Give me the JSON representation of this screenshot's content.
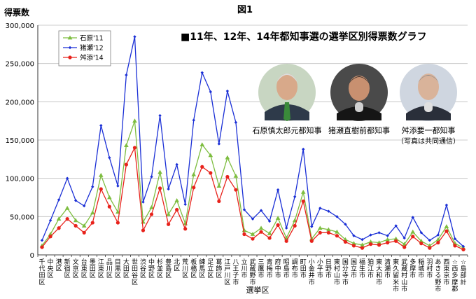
{
  "figure_label": "図1",
  "chart_data": {
    "type": "line",
    "title": "■11年、12年、14年都知事選の選挙区別得票数グラフ",
    "ylabel": "得票数",
    "xlabel": "選挙区",
    "ylim": [
      0,
      300000
    ],
    "yticks": [
      0,
      50000,
      100000,
      150000,
      200000,
      250000,
      300000
    ],
    "ytick_labels": [
      "0",
      "50,000",
      "100,000",
      "150,000",
      "200,000",
      "250,000",
      "300,000"
    ],
    "grid": true,
    "legend_position": "top-left",
    "categories": [
      "千代田区",
      "中央区",
      "港区",
      "新宿区",
      "文京区",
      "台東区",
      "墨田区",
      "江東区",
      "品川区",
      "目黒区",
      "大田区",
      "世田谷区",
      "渋谷区",
      "中野区",
      "杉並区",
      "豊島区",
      "北区",
      "荒川区",
      "板橋区",
      "練馬区",
      "足立区",
      "葛飾区",
      "江戸川区",
      "八王子市",
      "立川市",
      "武蔵野市",
      "三鷹市",
      "青梅市",
      "府中市",
      "昭島市",
      "調布市",
      "町田市",
      "小金井市",
      "小平市",
      "日野市",
      "東村山市",
      "国分寺市",
      "国立市",
      "福生市",
      "狛江市",
      "東大和市",
      "清瀬市",
      "東久留米市",
      "武蔵村山市",
      "多摩市",
      "稲城市",
      "羽村市",
      "あきる野市",
      "西東京市",
      "☆西多摩郡",
      "☆島部計"
    ],
    "series": [
      {
        "name": "石原'11",
        "color": "#7dbd3f",
        "marker": "triangle",
        "values": [
          12000,
          27000,
          47000,
          61000,
          45000,
          38000,
          55000,
          104000,
          75000,
          56000,
          143000,
          175000,
          43000,
          62000,
          108000,
          53000,
          71000,
          41000,
          105000,
          144000,
          130000,
          90000,
          127000,
          103000,
          32000,
          27000,
          35000,
          28000,
          48000,
          22000,
          45000,
          82000,
          21000,
          35000,
          33000,
          30000,
          20000,
          15000,
          13000,
          17000,
          16000,
          20000,
          21000,
          14000,
          30000,
          18000,
          12000,
          20000,
          37000,
          15000,
          9000
        ]
      },
      {
        "name": "猪瀬'12",
        "color": "#1a2fd6",
        "marker": "diamond",
        "values": [
          19000,
          45000,
          72000,
          100000,
          71000,
          64000,
          89000,
          169000,
          127000,
          90000,
          235000,
          285000,
          69000,
          102000,
          182000,
          86000,
          118000,
          66000,
          176000,
          238000,
          213000,
          145000,
          214000,
          173000,
          59000,
          47000,
          58000,
          44000,
          85000,
          35000,
          76000,
          138000,
          37000,
          61000,
          57000,
          50000,
          40000,
          25000,
          20000,
          26000,
          29000,
          25000,
          38000,
          22000,
          49000,
          29000,
          19000,
          26000,
          65000,
          21000,
          11000
        ]
      },
      {
        "name": "舛添'14",
        "color": "#e8221b",
        "marker": "circle",
        "values": [
          10000,
          24000,
          35000,
          47000,
          38000,
          29000,
          42000,
          86000,
          63000,
          42000,
          118000,
          140000,
          32000,
          53000,
          87000,
          40000,
          59000,
          34000,
          88000,
          115000,
          107000,
          70000,
          102000,
          85000,
          27000,
          21000,
          30000,
          22000,
          39000,
          18000,
          38000,
          70000,
          18000,
          29000,
          29000,
          25000,
          17000,
          12000,
          9000,
          14000,
          13000,
          16000,
          18000,
          10000,
          24000,
          15000,
          9000,
          16000,
          31000,
          12000,
          7000
        ]
      }
    ]
  },
  "photos": [
    {
      "caption": "石原慎太郎元都知事",
      "icon": "portrait-ishihara"
    },
    {
      "caption": "猪瀬直樹前都知事",
      "icon": "portrait-inose"
    },
    {
      "caption": "舛添要一都知事",
      "icon": "portrait-masuzoe"
    }
  ],
  "photo_credit": "（写真は共同通信）"
}
